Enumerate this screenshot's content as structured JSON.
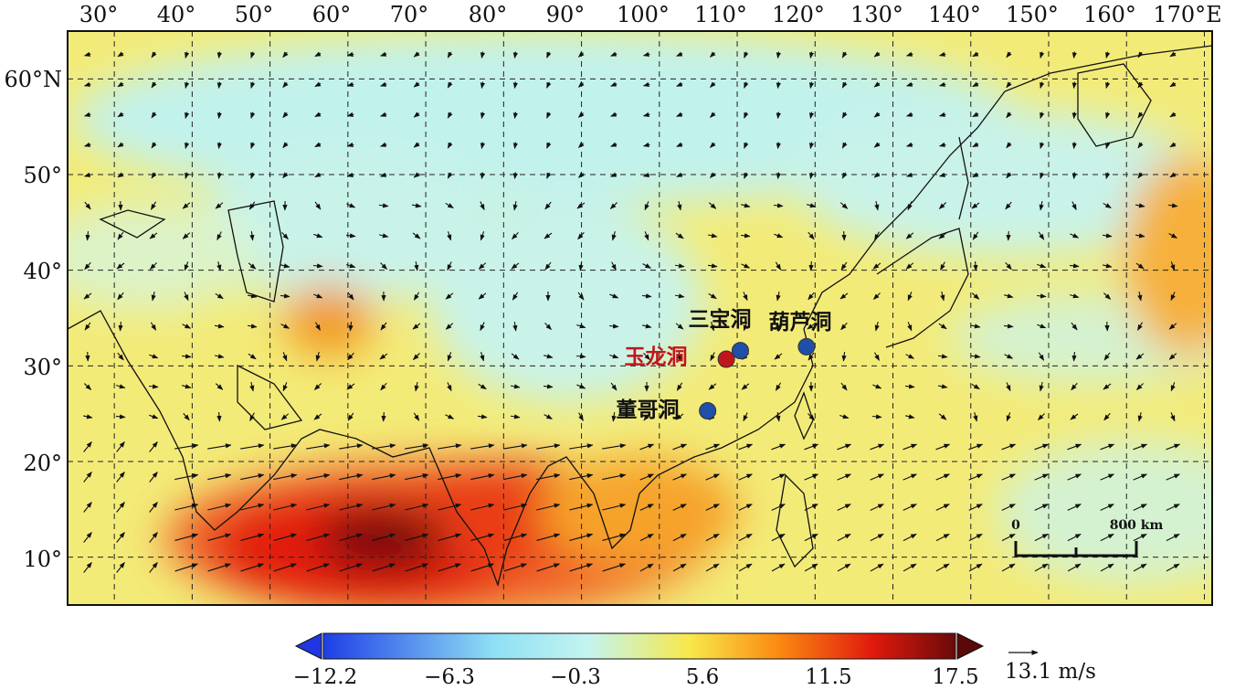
{
  "map": {
    "lon_labels": [
      "30°",
      "40°",
      "50°",
      "60°",
      "70°",
      "80°",
      "90°",
      "100°",
      "110°",
      "120°",
      "130°",
      "140°",
      "150°",
      "160°",
      "170°E"
    ],
    "lat_labels": [
      "60°N",
      "50°",
      "40°",
      "30°",
      "20°",
      "10°"
    ],
    "lon_range": [
      24,
      171
    ],
    "lat_range": [
      5,
      65
    ],
    "grid_style": "dashed"
  },
  "caves": [
    {
      "name": "三宝洞",
      "lon": 110.4,
      "lat": 31.6,
      "color": "#1f4fa8",
      "label_color": "#111111"
    },
    {
      "name": "葫芦洞",
      "lon": 118.9,
      "lat": 32.0,
      "color": "#1f4fa8",
      "label_color": "#111111"
    },
    {
      "name": "玉龙洞",
      "lon": 108.6,
      "lat": 30.7,
      "color": "#c0161b",
      "label_color": "#c0161b"
    },
    {
      "name": "董哥洞",
      "lon": 106.2,
      "lat": 25.3,
      "color": "#1f4fa8",
      "label_color": "#111111"
    }
  ],
  "scale_bar": {
    "labels": [
      "0",
      "800 km"
    ]
  },
  "colorbar": {
    "ticks": [
      "−12.2",
      "−6.3",
      "−0.3",
      "5.6",
      "11.5",
      "17.5"
    ],
    "colors": [
      "#1e3ee6",
      "#8fe0f5",
      "#c4f4ef",
      "#f7e84b",
      "#fb8a12",
      "#e0190d",
      "#6b0a0a"
    ],
    "under_color": "#1f36e0",
    "over_color": "#5a0808"
  },
  "vector_key": {
    "label": "13.1 m/s"
  }
}
